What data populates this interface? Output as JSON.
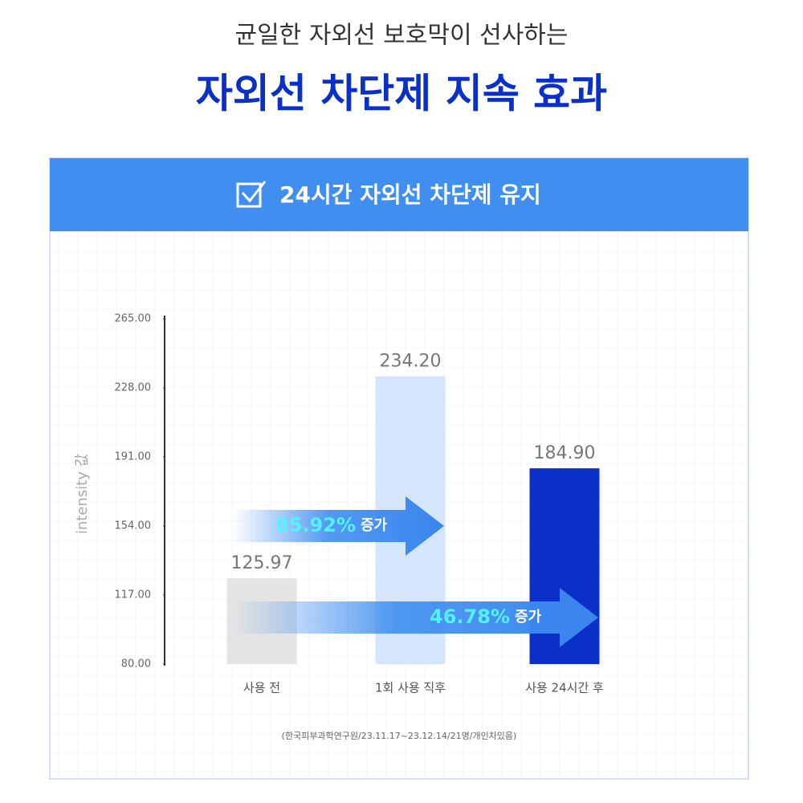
{
  "chart_data": {
    "type": "bar",
    "subtitle": "균일한 자외선 보호막이 선사하는",
    "title": "자외선 차단제 지속 효과",
    "panel_title": "24시간 자외선 차단제 유지",
    "y_label": "intensity 값",
    "categories": [
      "사용 전",
      "1회 사용 직후",
      "사용 24시간 후"
    ],
    "values": [
      125.97,
      234.2,
      184.9
    ],
    "value_labels": [
      "125.97",
      "234.20",
      "184.90"
    ],
    "colors": [
      "#e4e4e4",
      "#d5e5fb",
      "#0a30c8"
    ],
    "ylim": [
      80,
      265
    ],
    "yticks": [
      {
        "value": 80,
        "label": "80.00"
      },
      {
        "value": 117,
        "label": "117.00"
      },
      {
        "value": 154,
        "label": "154.00"
      },
      {
        "value": 191,
        "label": "191.00"
      },
      {
        "value": 228,
        "label": "228.00"
      },
      {
        "value": 265,
        "label": "265.00"
      }
    ],
    "annotations": [
      {
        "label": "85.92%",
        "text": "증가"
      },
      {
        "label": "46.78%",
        "text": "증가"
      }
    ],
    "source": "(한국피부과학연구원/23.11.17~23.12.14/21명/개인차있음)"
  }
}
